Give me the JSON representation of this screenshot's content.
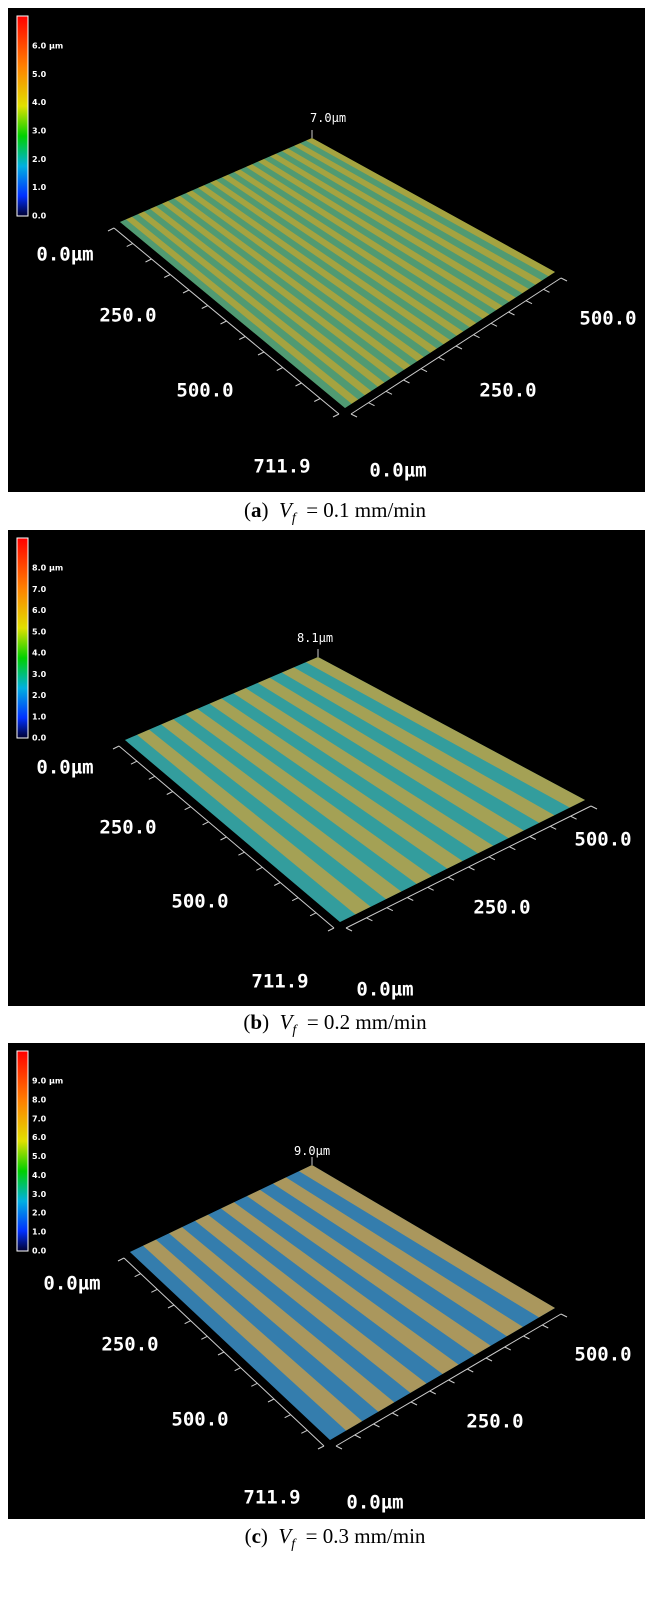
{
  "panels": [
    {
      "colorbar": [
        "6.0 µm",
        "5.0",
        "4.0",
        "3.0",
        "2.0",
        "1.0",
        "0.0"
      ],
      "zmax": "7.0µm",
      "left_axis": [
        "0.0µm",
        "250.0",
        "500.0",
        "711.9"
      ],
      "right_axis": [
        "0.0µm",
        "250.0",
        "500.0"
      ],
      "caption": {
        "open": "(",
        "letter": "a",
        "close": ")",
        "symbol": "V",
        "subscript": "f",
        "text": "= 0.1 mm/min"
      }
    },
    {
      "colorbar": [
        "8.0 µm",
        "7.0",
        "6.0",
        "5.0",
        "4.0",
        "3.0",
        "2.0",
        "1.0",
        "0.0"
      ],
      "zmax": "8.1µm",
      "left_axis": [
        "0.0µm",
        "250.0",
        "500.0",
        "711.9"
      ],
      "right_axis": [
        "0.0µm",
        "250.0",
        "500.0"
      ],
      "caption": {
        "open": "(",
        "letter": "b",
        "close": ")",
        "symbol": "V",
        "subscript": "f",
        "text": "= 0.2 mm/min"
      }
    },
    {
      "colorbar": [
        "9.0 µm",
        "8.0",
        "7.0",
        "6.0",
        "5.0",
        "4.0",
        "3.0",
        "2.0",
        "1.0",
        "0.0"
      ],
      "zmax": "9.0µm",
      "left_axis": [
        "0.0µm",
        "250.0",
        "500.0",
        "711.9"
      ],
      "right_axis": [
        "0.0µm",
        "250.0",
        "500.0"
      ],
      "caption": {
        "open": "(",
        "letter": "c",
        "close": ")",
        "symbol": "V",
        "subscript": "f",
        "text": "= 0.3 mm/min"
      }
    }
  ]
}
